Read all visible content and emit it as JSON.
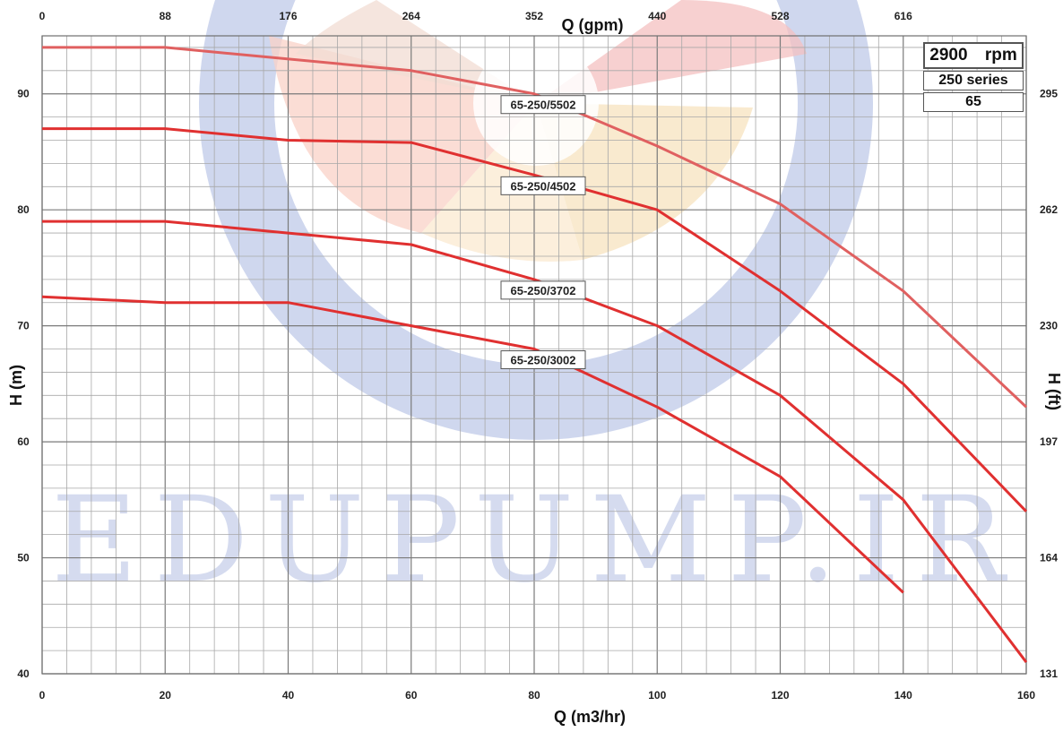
{
  "info": {
    "rpm_value": "2900",
    "rpm_unit": "rpm",
    "series_value": "250",
    "series_word": "series",
    "size": "65"
  },
  "watermark": "EDUPUMP.IR",
  "colors": {
    "curve": "#e03030",
    "curve_top": "#e06060",
    "grid": "#a8a8a8",
    "watermark_blue": "#c7d0ea",
    "label_bg": "#ffffff"
  },
  "chart_data": {
    "type": "line",
    "title": "",
    "xlabel": "Q (m3/hr)",
    "ylabel": "H (m)",
    "x2label": "Q (gpm)",
    "y2label": "H (ft)",
    "xlim": [
      0,
      160
    ],
    "ylim": [
      40,
      95
    ],
    "x_ticks": [
      0,
      20,
      40,
      60,
      80,
      100,
      120,
      140,
      160
    ],
    "y_ticks": [
      40,
      50,
      60,
      70,
      80,
      90
    ],
    "x2_ticks": [
      "0",
      "88",
      "176",
      "264",
      "352",
      "440",
      "528",
      "616"
    ],
    "y2_ticks": [
      "131",
      "164",
      "197",
      "230",
      "262",
      "295"
    ],
    "grid": true,
    "series": [
      {
        "name": "65-250/5502",
        "x": [
          0,
          20,
          60,
          80,
          100,
          120,
          140,
          160
        ],
        "y": [
          94,
          94,
          92,
          90,
          85.5,
          80.5,
          73,
          63
        ]
      },
      {
        "name": "65-250/4502",
        "x": [
          0,
          20,
          40,
          60,
          80,
          100,
          120,
          140,
          160
        ],
        "y": [
          87,
          87,
          86,
          85.8,
          83,
          80,
          73,
          65,
          54
        ]
      },
      {
        "name": "65-250/3702",
        "x": [
          0,
          20,
          40,
          60,
          80,
          100,
          120,
          140,
          160
        ],
        "y": [
          79,
          79,
          78,
          77,
          74,
          70,
          64,
          55,
          41
        ]
      },
      {
        "name": "65-250/3002",
        "x": [
          0,
          20,
          40,
          60,
          80,
          100,
          120,
          140
        ],
        "y": [
          72.5,
          72,
          72,
          70,
          68,
          63,
          57,
          47
        ]
      }
    ]
  }
}
